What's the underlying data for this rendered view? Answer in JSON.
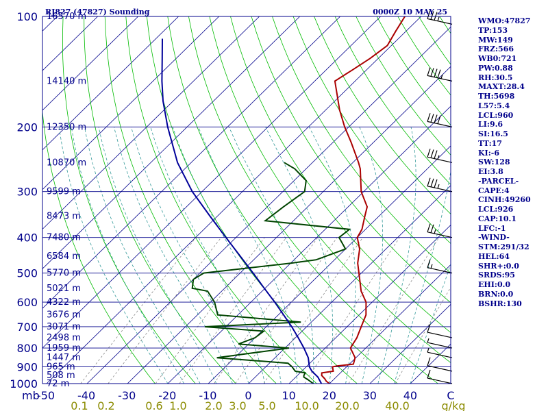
{
  "chart_data": {
    "type": "skew-t",
    "title": "RJ827 (47827) Sounding",
    "datetime": "0000Z 10 MAY 25",
    "pressure_axis": {
      "ticks": [
        100,
        200,
        300,
        400,
        500,
        600,
        700,
        800,
        900,
        1000
      ],
      "unit_label": "mb",
      "scale": "log",
      "range": [
        1000,
        100
      ]
    },
    "temperature_axis": {
      "ticks": [
        "-50",
        "-40",
        "-30",
        "-20",
        "-10",
        "0",
        "10",
        "20",
        "30",
        "40",
        "C"
      ],
      "values": [
        -50,
        -40,
        -30,
        -20,
        -10,
        0,
        10,
        20,
        30,
        40
      ],
      "unit": "C",
      "skewed": true
    },
    "mixing_ratio_labels": [
      "0.1",
      "0.2",
      "0.6",
      "1.0",
      "2.0",
      "3.0",
      "5.0",
      "10.0",
      "20.0",
      "40.0",
      "g/kg"
    ],
    "height_labels": [
      {
        "p": 100,
        "label": "16570 m"
      },
      {
        "p": 150,
        "label": "14140 m"
      },
      {
        "p": 200,
        "label": "12350 m"
      },
      {
        "p": 250,
        "label": "10870 m"
      },
      {
        "p": 300,
        "label": "9599 m"
      },
      {
        "p": 350,
        "label": "8473 m"
      },
      {
        "p": 400,
        "label": "7480 m"
      },
      {
        "p": 450,
        "label": "6584 m"
      },
      {
        "p": 500,
        "label": "5770 m"
      },
      {
        "p": 550,
        "label": "5021 m"
      },
      {
        "p": 600,
        "label": "4322 m"
      },
      {
        "p": 650,
        "label": "3676 m"
      },
      {
        "p": 700,
        "label": "3071 m"
      },
      {
        "p": 750,
        "label": "2498 m"
      },
      {
        "p": 800,
        "label": "1959 m"
      },
      {
        "p": 850,
        "label": "1447 m"
      },
      {
        "p": 900,
        "label": "965 m"
      },
      {
        "p": 950,
        "label": "508 m"
      },
      {
        "p": 1000,
        "label": "72 m"
      }
    ],
    "series": [
      {
        "kind": "temperature",
        "color": "#aa0000",
        "points": [
          [
            1006,
            20.7
          ],
          [
            1000,
            20.0
          ],
          [
            985,
            18.6
          ],
          [
            970,
            17.6
          ],
          [
            950,
            16.0
          ],
          [
            935,
            15.4
          ],
          [
            925,
            17.8
          ],
          [
            900,
            16.5
          ],
          [
            895,
            17.4
          ],
          [
            885,
            21.0
          ],
          [
            850,
            19.8
          ],
          [
            800,
            16.2
          ],
          [
            750,
            15.2
          ],
          [
            700,
            13.5
          ],
          [
            650,
            11.7
          ],
          [
            600,
            8.5
          ],
          [
            560,
            4.5
          ],
          [
            500,
            -0.6
          ],
          [
            470,
            -3.4
          ],
          [
            430,
            -6.5
          ],
          [
            400,
            -10.0
          ],
          [
            380,
            -10.9
          ],
          [
            350,
            -13.5
          ],
          [
            330,
            -15.3
          ],
          [
            300,
            -20.6
          ],
          [
            260,
            -26.6
          ],
          [
            250,
            -28.6
          ],
          [
            220,
            -35.6
          ],
          [
            200,
            -41.0
          ],
          [
            180,
            -46.5
          ],
          [
            150,
            -55.0
          ],
          [
            140,
            -53.5
          ],
          [
            130,
            -52.0
          ],
          [
            120,
            -51.0
          ],
          [
            110,
            -52.5
          ],
          [
            100,
            -54.0
          ]
        ]
      },
      {
        "kind": "dewpoint",
        "color": "#004400",
        "points": [
          [
            1006,
            16.5
          ],
          [
            1000,
            16.0
          ],
          [
            975,
            13.6
          ],
          [
            960,
            12.0
          ],
          [
            950,
            11.6
          ],
          [
            935,
            11.3
          ],
          [
            925,
            8.4
          ],
          [
            900,
            6.5
          ],
          [
            880,
            4.6
          ],
          [
            850,
            -14.4
          ],
          [
            800,
            1.0
          ],
          [
            780,
            -12.5
          ],
          [
            750,
            -10.0
          ],
          [
            720,
            -9.5
          ],
          [
            700,
            -25.2
          ],
          [
            680,
            -2.6
          ],
          [
            650,
            -25.0
          ],
          [
            600,
            -29.0
          ],
          [
            560,
            -33.5
          ],
          [
            550,
            -38.0
          ],
          [
            520,
            -40.0
          ],
          [
            500,
            -39.0
          ],
          [
            470,
            -20.0
          ],
          [
            460,
            -14.5
          ],
          [
            430,
            -10.0
          ],
          [
            400,
            -14.5
          ],
          [
            380,
            -14.0
          ],
          [
            360,
            -37.0
          ],
          [
            330,
            -36.0
          ],
          [
            300,
            -34.6
          ],
          [
            280,
            -37.0
          ],
          [
            260,
            -42.8
          ],
          [
            250,
            -47.0
          ]
        ]
      },
      {
        "kind": "parcel",
        "color": "#000099",
        "points": [
          [
            1000,
            18.0
          ],
          [
            960,
            15.5
          ],
          [
            925,
            12.5
          ],
          [
            900,
            10.8
          ],
          [
            850,
            8.2
          ],
          [
            800,
            4.7
          ],
          [
            750,
            0.7
          ],
          [
            700,
            -3.7
          ],
          [
            650,
            -8.7
          ],
          [
            600,
            -14.1
          ],
          [
            550,
            -20.2
          ],
          [
            500,
            -26.8
          ],
          [
            450,
            -34.2
          ],
          [
            400,
            -42.5
          ],
          [
            350,
            -51.8
          ],
          [
            300,
            -62.4
          ],
          [
            250,
            -73.4
          ],
          [
            200,
            -84.8
          ],
          [
            170,
            -92.5
          ],
          [
            150,
            -97.8
          ],
          [
            130,
            -103.5
          ],
          [
            115,
            -108.4
          ]
        ]
      }
    ],
    "wind_barbs": [
      {
        "p": 105,
        "speed_kt": 35
      },
      {
        "p": 150,
        "speed_kt": 45
      },
      {
        "p": 200,
        "speed_kt": 40
      },
      {
        "p": 250,
        "speed_kt": 35
      },
      {
        "p": 300,
        "speed_kt": 35
      },
      {
        "p": 400,
        "speed_kt": 25
      },
      {
        "p": 500,
        "speed_kt": 15
      },
      {
        "p": 750,
        "speed_kt": 10
      },
      {
        "p": 800,
        "speed_kt": 5
      },
      {
        "p": 850,
        "speed_kt": 5
      },
      {
        "p": 925,
        "speed_kt": 10
      },
      {
        "p": 1000,
        "speed_kt": 10
      }
    ],
    "colors": {
      "frame": "#00008b",
      "isobar": "#00008b",
      "isotherm": "#00008b",
      "dry_adiabat": "#00bb00",
      "moist_adiabat": "#339999",
      "mixing_ratio": "#888888",
      "temperature": "#aa0000",
      "dewpoint": "#004400",
      "parcel": "#000099",
      "text": "#00008b",
      "mixing_ratio_text": "#8b8b00"
    }
  },
  "indices": [
    "WMO:47827",
    "TP:153",
    "MW:149",
    "FRZ:566",
    "WB0:721",
    "PW:0.88",
    "RH:30.5",
    "MAXT:28.4",
    "TH:5698",
    "L57:5.4",
    "LCL:960",
    "LI:9.6",
    "SI:16.5",
    "TT:17",
    "KI:-6",
    "SW:128",
    "EI:3.8",
    "-PARCEL-",
    "CAPE:4",
    "CINH:49260",
    "LCL:926",
    "CAP:10.1",
    "LFC:-1",
    "-WIND-",
    "STM:291/32",
    "HEL:64",
    "SHR+:0.0",
    "SRDS:95",
    "EHI:0.0",
    "BRN:0.0",
    "BSHR:130"
  ]
}
